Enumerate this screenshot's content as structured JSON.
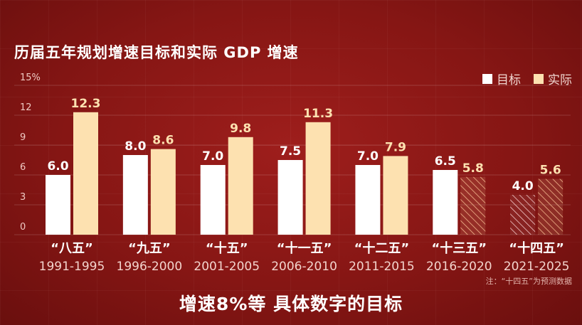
{
  "title": "历届五年规划增速目标和实际 GDP 增速",
  "legend": [
    {
      "label": "目标",
      "color": "#ffffff"
    },
    {
      "label": "实际",
      "color": "#fde1b0"
    }
  ],
  "note": "注：“十四五”为预测数据",
  "subtitle": "增速8%等 具体数字的目标",
  "chart_data": {
    "type": "bar",
    "categories": [
      "“八五”",
      "“九五”",
      "“十五”",
      "“十一五”",
      "“十二五”",
      "“十三五”",
      "“十四五”"
    ],
    "periods": [
      "1991-1995",
      "1996-2000",
      "2001-2005",
      "2006-2010",
      "2011-2015",
      "2016-2020",
      "2021-2025"
    ],
    "series": [
      {
        "name": "目标",
        "values": [
          6.0,
          8.0,
          7.0,
          7.5,
          7.0,
          6.5,
          4.0
        ],
        "color": "#ffffff"
      },
      {
        "name": "实际",
        "values": [
          12.3,
          8.6,
          9.8,
          11.3,
          7.9,
          5.8,
          5.6
        ],
        "color": "#fde1b0"
      }
    ],
    "hatched": {
      "目标": [
        6
      ],
      "实际": [
        5,
        6
      ]
    },
    "yticks": [
      0,
      3,
      6,
      9,
      12,
      15
    ],
    "ytick_labels": [
      "0",
      "3",
      "6",
      "9",
      "12",
      "15%"
    ],
    "ylim": [
      0,
      15
    ],
    "xlabel": "",
    "ylabel": "",
    "grid": true,
    "legend_position": "top-right"
  }
}
